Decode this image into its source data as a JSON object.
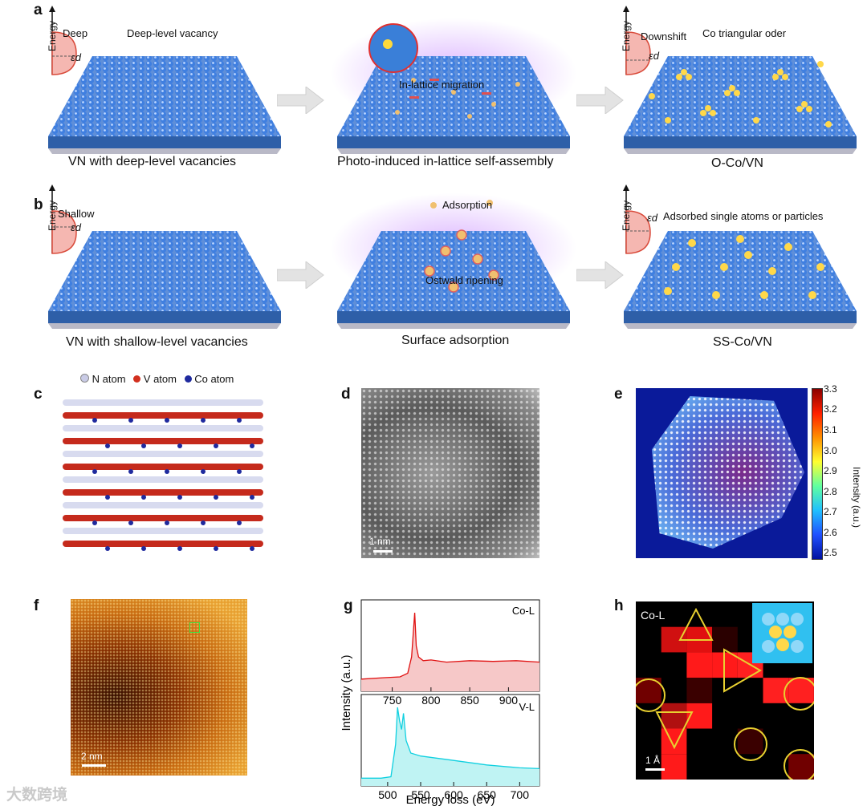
{
  "panels": {
    "a": {
      "label": "a",
      "left": {
        "caption": "VN with deep-level vacancies",
        "level": "Deep",
        "annotation": "Deep-level vacancy"
      },
      "middle": {
        "caption": "Photo-induced in-lattice self-assembly",
        "annotation": "In-lattice migration"
      },
      "right": {
        "caption": "O-Co/VN",
        "level": "Downshift",
        "annotation": "Co triangular oder"
      }
    },
    "b": {
      "label": "b",
      "left": {
        "caption": "VN with shallow-level vacancies",
        "level": "Shallow"
      },
      "middle": {
        "caption": "Surface adsorption",
        "annotation_top": "Adsorption",
        "annotation_mid": "Ostwald ripening"
      },
      "right": {
        "caption": "SS-Co/VN",
        "annotation": "Adsorbed single atoms or particles"
      }
    },
    "energy_axis": "Energy",
    "epsilon": "εd",
    "c": {
      "label": "c",
      "legend": [
        "N atom",
        "V atom",
        "Co atom"
      ],
      "legend_colors": [
        "#c9cbe6",
        "#d2301f",
        "#1f2a9e"
      ]
    },
    "d": {
      "label": "d",
      "scale": "1 nm"
    },
    "e": {
      "label": "e",
      "colorbar_ticks": [
        "3.3",
        "3.2",
        "3.1",
        "3.0",
        "2.9",
        "2.8",
        "2.7",
        "2.6",
        "2.5"
      ],
      "colorbar_label": "Intensity (a.u.)"
    },
    "f": {
      "label": "f",
      "scale": "2 nm"
    },
    "g": {
      "label": "g",
      "ylabel": "Intensity (a.u.)",
      "xlabel": "Energy loss (eV)",
      "top_label": "Co-L",
      "bottom_label": "V-L",
      "top_ticks": [
        "750",
        "800",
        "850",
        "900"
      ],
      "bottom_ticks": [
        "500",
        "550",
        "600",
        "650",
        "700"
      ]
    },
    "h": {
      "label": "h",
      "tag": "Co-L",
      "scale": "1 Å"
    }
  },
  "watermark": "大数跨境",
  "chart_data": [
    {
      "type": "line",
      "title": "Co-L",
      "xlabel": "Energy loss (eV)",
      "ylabel": "Intensity (a.u.)",
      "xlim": [
        710,
        940
      ],
      "x": [
        710,
        740,
        760,
        770,
        775,
        779,
        781,
        784,
        790,
        800,
        820,
        850,
        880,
        910,
        940
      ],
      "y": [
        0.1,
        0.12,
        0.13,
        0.18,
        0.4,
        1.0,
        0.55,
        0.4,
        0.35,
        0.36,
        0.33,
        0.35,
        0.34,
        0.35,
        0.33
      ]
    },
    {
      "type": "line",
      "title": "V-L",
      "xlabel": "Energy loss (eV)",
      "ylabel": "Intensity (a.u.)",
      "xlim": [
        460,
        730
      ],
      "x": [
        460,
        490,
        505,
        512,
        515,
        518,
        521,
        524,
        528,
        535,
        550,
        600,
        650,
        700,
        730
      ],
      "y": [
        0.04,
        0.04,
        0.06,
        0.5,
        1.0,
        0.82,
        0.7,
        0.92,
        0.55,
        0.38,
        0.34,
        0.28,
        0.22,
        0.18,
        0.17
      ]
    }
  ]
}
